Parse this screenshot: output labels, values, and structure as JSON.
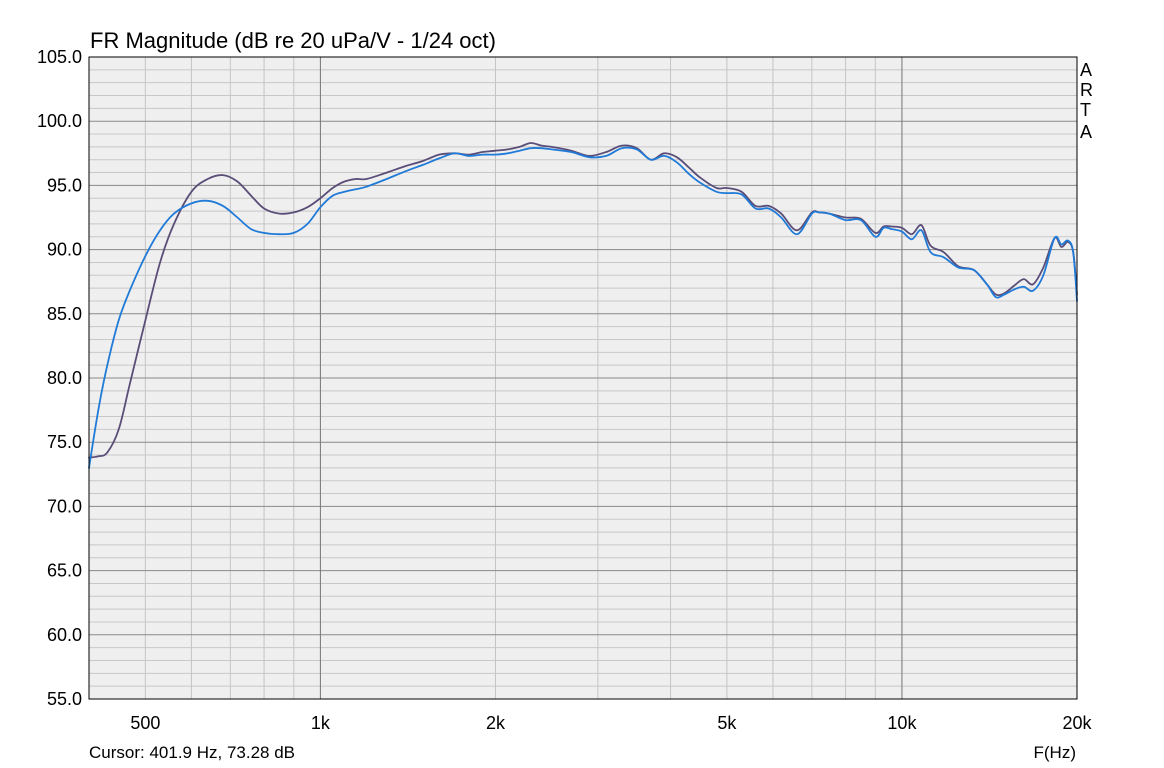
{
  "chart_data": {
    "type": "line",
    "title": "FR Magnitude (dB re 20 uPa/V - 1/24 oct)",
    "xlabel": "F(Hz)",
    "ylabel": "",
    "x_scale": "log",
    "xlim": [
      400,
      20000
    ],
    "ylim": [
      55,
      105
    ],
    "grid": true,
    "y_ticks": [
      55,
      60,
      65,
      70,
      75,
      80,
      85,
      90,
      95,
      100,
      105
    ],
    "y_tick_labels": [
      "55.0",
      "60.0",
      "65.0",
      "70.0",
      "75.0",
      "80.0",
      "85.0",
      "90.0",
      "95.0",
      "100.0",
      "105.0"
    ],
    "x_ticks": [
      500,
      1000,
      2000,
      5000,
      10000,
      20000
    ],
    "x_tick_labels": [
      "500",
      "1k",
      "2k",
      "5k",
      "10k",
      "20k"
    ],
    "series": [
      {
        "color": "#5a4e78",
        "x": [
          400,
          415,
          430,
          450,
          470,
          500,
          530,
          560,
          600,
          640,
          680,
          720,
          760,
          800,
          850,
          900,
          950,
          1000,
          1050,
          1100,
          1150,
          1200,
          1300,
          1400,
          1500,
          1600,
          1700,
          1800,
          1900,
          2000,
          2100,
          2200,
          2300,
          2400,
          2500,
          2700,
          2900,
          3100,
          3300,
          3500,
          3700,
          3900,
          4100,
          4300,
          4500,
          4800,
          5000,
          5300,
          5600,
          5900,
          6200,
          6600,
          7000,
          7200,
          7500,
          8000,
          8500,
          9000,
          9300,
          9600,
          10000,
          10400,
          10800,
          11200,
          11800,
          12500,
          13300,
          14000,
          14500,
          15000,
          15600,
          16200,
          16800,
          17500,
          18300,
          18800,
          19300,
          19700,
          20000
        ],
        "y": [
          73.8,
          73.9,
          74.2,
          76.0,
          79.5,
          84.5,
          89.0,
          92.0,
          94.5,
          95.5,
          95.8,
          95.3,
          94.2,
          93.2,
          92.8,
          92.9,
          93.3,
          94.0,
          94.8,
          95.3,
          95.5,
          95.5,
          96.0,
          96.5,
          96.9,
          97.4,
          97.5,
          97.4,
          97.6,
          97.7,
          97.8,
          98.0,
          98.3,
          98.1,
          98.0,
          97.7,
          97.3,
          97.6,
          98.1,
          97.9,
          97.0,
          97.5,
          97.2,
          96.4,
          95.6,
          94.8,
          94.8,
          94.5,
          93.4,
          93.4,
          92.8,
          91.5,
          92.9,
          92.9,
          92.8,
          92.5,
          92.4,
          91.3,
          91.8,
          91.8,
          91.7,
          91.2,
          91.9,
          90.3,
          89.8,
          88.7,
          88.4,
          87.3,
          86.5,
          86.6,
          87.2,
          87.7,
          87.3,
          88.6,
          90.9,
          90.2,
          90.6,
          89.8,
          86.5
        ]
      },
      {
        "color": "#1f7ad8",
        "x": [
          400,
          415,
          430,
          450,
          470,
          500,
          530,
          560,
          600,
          640,
          680,
          720,
          760,
          800,
          850,
          900,
          950,
          1000,
          1050,
          1100,
          1150,
          1200,
          1300,
          1400,
          1500,
          1600,
          1700,
          1800,
          1900,
          2000,
          2100,
          2200,
          2300,
          2400,
          2500,
          2700,
          2900,
          3100,
          3300,
          3500,
          3700,
          3900,
          4100,
          4300,
          4500,
          4800,
          5000,
          5300,
          5600,
          5900,
          6200,
          6600,
          7000,
          7200,
          7500,
          8000,
          8500,
          9000,
          9300,
          9600,
          10000,
          10400,
          10800,
          11200,
          11800,
          12500,
          13300,
          14000,
          14500,
          15000,
          15600,
          16200,
          16800,
          17500,
          18300,
          18800,
          19300,
          19700,
          20000
        ],
        "y": [
          73.0,
          77.5,
          81.0,
          84.5,
          86.8,
          89.5,
          91.5,
          92.8,
          93.6,
          93.8,
          93.4,
          92.5,
          91.6,
          91.3,
          91.2,
          91.3,
          92.0,
          93.3,
          94.2,
          94.5,
          94.7,
          94.9,
          95.5,
          96.1,
          96.6,
          97.1,
          97.5,
          97.3,
          97.4,
          97.4,
          97.5,
          97.7,
          97.9,
          97.9,
          97.8,
          97.6,
          97.2,
          97.3,
          97.9,
          97.8,
          97.0,
          97.3,
          96.8,
          95.9,
          95.2,
          94.5,
          94.4,
          94.3,
          93.2,
          93.2,
          92.5,
          91.2,
          92.8,
          92.9,
          92.8,
          92.3,
          92.3,
          91.0,
          91.7,
          91.6,
          91.4,
          90.8,
          91.5,
          89.8,
          89.4,
          88.6,
          88.4,
          87.3,
          86.3,
          86.5,
          86.9,
          87.1,
          86.8,
          88.0,
          90.9,
          90.4,
          90.7,
          89.8,
          86.0
        ]
      }
    ]
  },
  "header": {
    "brand_letters": [
      "A",
      "R",
      "T",
      "A"
    ]
  },
  "footer": {
    "cursor_text": "Cursor: 401.9 Hz, 73.28 dB"
  }
}
